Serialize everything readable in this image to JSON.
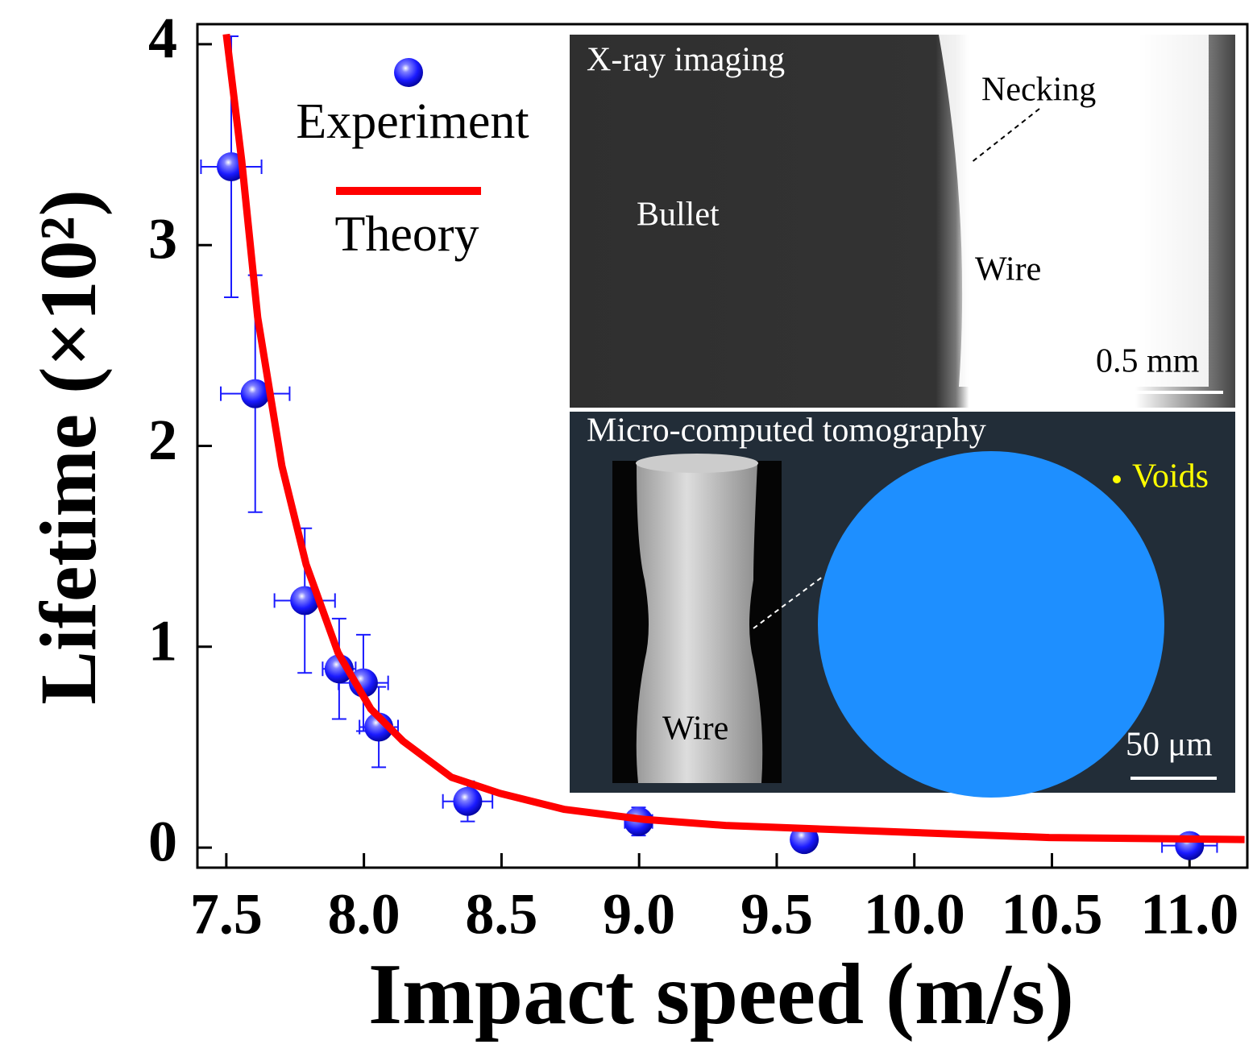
{
  "chart_data": {
    "type": "scatter",
    "xlabel": "Impact speed (m/s)",
    "ylabel": "Lifetime (×10²)",
    "xlim": [
      7.395,
      11.21
    ],
    "ylim": [
      -0.1,
      4.1
    ],
    "xticks": [
      7.5,
      {
        "value": 8,
        "label": "8.0"
      },
      8.5,
      {
        "value": 9,
        "label": "9.0"
      },
      9.5,
      {
        "value": 10,
        "label": "10.0"
      },
      10.5,
      {
        "value": 11,
        "label": "11.0"
      }
    ],
    "yticks": [
      0,
      1,
      2,
      3,
      4
    ],
    "series": [
      {
        "name": "Experiment",
        "color": "#1a1aff",
        "x": [
          7.518,
          7.605,
          7.785,
          7.91,
          7.998,
          8.054,
          8.377,
          8.998,
          9.6,
          11.0
        ],
        "values": [
          3.39,
          2.26,
          1.23,
          0.89,
          0.82,
          0.6,
          0.23,
          0.13,
          0.04,
          0.01
        ],
        "xerr": [
          0.11,
          0.125,
          0.11,
          0.06,
          0.09,
          0.07,
          0.09,
          0.05,
          0.04,
          0.1
        ],
        "yerr": [
          0.65,
          0.59,
          0.36,
          0.25,
          0.24,
          0.2,
          0.1,
          0.07,
          0.03,
          0.02
        ]
      },
      {
        "name": "Theory",
        "color": "#ff0000",
        "x": [
          7.5,
          7.556,
          7.614,
          7.702,
          7.79,
          7.906,
          8.025,
          8.142,
          8.318,
          8.494,
          8.729,
          9.02,
          9.314,
          9.9,
          10.49,
          11.2
        ],
        "values": [
          4.05,
          3.42,
          2.64,
          1.9,
          1.41,
          0.97,
          0.69,
          0.53,
          0.35,
          0.27,
          0.19,
          0.14,
          0.11,
          0.08,
          0.05,
          0.04
        ]
      }
    ],
    "annotations": {
      "xray_title": "X-ray imaging",
      "necking": "Necking",
      "bullet": "Bullet",
      "wire_xray": "Wire",
      "scale_xray": "0.5 mm",
      "ct_title": "Micro-computed tomography",
      "voids": "Voids",
      "wire_ct": "Wire",
      "scale_ct": "50 μm"
    }
  }
}
